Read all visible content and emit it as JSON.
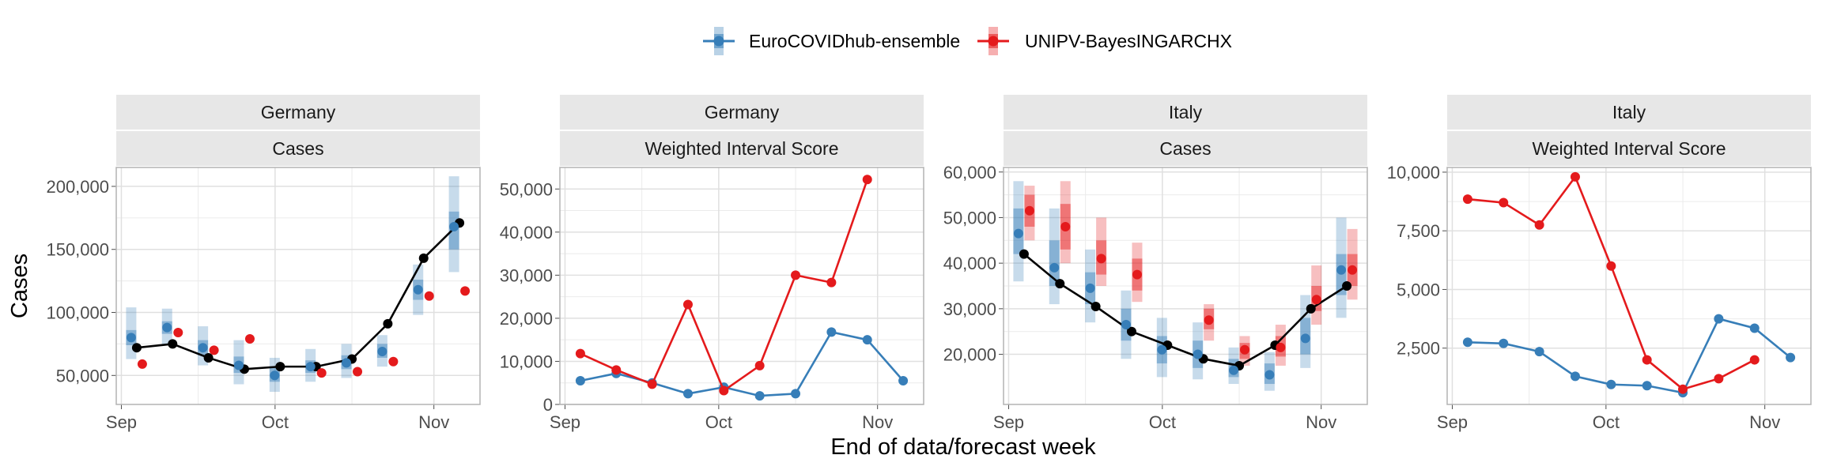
{
  "y_axis_label": "Cases",
  "x_axis_label": "End of data/forecast week",
  "x_tick_labels": [
    "Sep",
    "Oct",
    "Nov"
  ],
  "colors": {
    "EuroCOVIDhub-ensemble": "#377eb8",
    "UNIPV-BayesINGARCHX": "#e41a1c",
    "observed": "#000000"
  },
  "legend": [
    "EuroCOVIDhub-ensemble",
    "UNIPV-BayesINGARCHX"
  ],
  "chart_data": [
    {
      "type": "line",
      "facet": [
        "Germany",
        "Cases"
      ],
      "dates": [
        "2021-09-04",
        "2021-09-11",
        "2021-09-18",
        "2021-09-25",
        "2021-10-02",
        "2021-10-09",
        "2021-10-16",
        "2021-10-23",
        "2021-10-30",
        "2021-11-06"
      ],
      "xlim": [
        "2021-08-31",
        "2021-11-10"
      ],
      "ylim": [
        27000,
        215000
      ],
      "yticks": [
        50000,
        100000,
        150000,
        200000
      ],
      "ytick_labels": [
        "50,000",
        "100,000",
        "150,000",
        "200,000"
      ],
      "observed": [
        72000,
        75000,
        64000,
        55000,
        57000,
        57000,
        63000,
        91000,
        143000,
        171000
      ],
      "series": [
        {
          "name": "EuroCOVIDhub-ensemble",
          "median": [
            80000,
            88000,
            72000,
            58000,
            50000,
            57000,
            60000,
            69000,
            118000,
            168000
          ],
          "inner": [
            [
              74000,
              86000
            ],
            [
              83000,
              93000
            ],
            [
              66000,
              78000
            ],
            [
              52000,
              65000
            ],
            [
              45000,
              56000
            ],
            [
              52000,
              62000
            ],
            [
              55000,
              66000
            ],
            [
              64000,
              75000
            ],
            [
              110000,
              126000
            ],
            [
              150000,
              180000
            ]
          ],
          "outer": [
            [
              63000,
              104000
            ],
            [
              74000,
              103000
            ],
            [
              58000,
              89000
            ],
            [
              43000,
              78000
            ],
            [
              37000,
              64000
            ],
            [
              45000,
              71000
            ],
            [
              48000,
              75000
            ],
            [
              57000,
              82000
            ],
            [
              98000,
              138000
            ],
            [
              132000,
              208000
            ]
          ]
        },
        {
          "name": "UNIPV-BayesINGARCHX",
          "median": [
            59000,
            84000,
            70000,
            79000,
            null,
            52000,
            53000,
            61000,
            113000,
            117000
          ]
        }
      ]
    },
    {
      "type": "line",
      "facet": [
        "Germany",
        "Weighted Interval Score"
      ],
      "dates": [
        "2021-09-04",
        "2021-09-11",
        "2021-09-18",
        "2021-09-25",
        "2021-10-02",
        "2021-10-09",
        "2021-10-16",
        "2021-10-23",
        "2021-10-30",
        "2021-11-06"
      ],
      "xlim": [
        "2021-08-31",
        "2021-11-10"
      ],
      "ylim": [
        0,
        55000
      ],
      "yticks": [
        0,
        10000,
        20000,
        30000,
        40000,
        50000
      ],
      "ytick_labels": [
        "0",
        "10,000",
        "20,000",
        "30,000",
        "40,000",
        "50,000"
      ],
      "series": [
        {
          "name": "EuroCOVIDhub-ensemble",
          "values": [
            5500,
            7200,
            5000,
            2500,
            4000,
            2000,
            2500,
            16800,
            15000,
            5500
          ]
        },
        {
          "name": "UNIPV-BayesINGARCHX",
          "values": [
            11800,
            8000,
            4700,
            23200,
            3200,
            9000,
            30000,
            28300,
            52200,
            null
          ]
        }
      ]
    },
    {
      "type": "line",
      "facet": [
        "Italy",
        "Cases"
      ],
      "dates": [
        "2021-09-04",
        "2021-09-11",
        "2021-09-18",
        "2021-09-25",
        "2021-10-02",
        "2021-10-09",
        "2021-10-16",
        "2021-10-23",
        "2021-10-30",
        "2021-11-06"
      ],
      "xlim": [
        "2021-08-31",
        "2021-11-10"
      ],
      "ylim": [
        9000,
        61000
      ],
      "yticks": [
        20000,
        30000,
        40000,
        50000,
        60000
      ],
      "ytick_labels": [
        "20,000",
        "30,000",
        "40,000",
        "50,000",
        "60,000"
      ],
      "observed": [
        42000,
        35500,
        30500,
        25000,
        22000,
        19000,
        17500,
        22000,
        30000,
        35000
      ],
      "series": [
        {
          "name": "EuroCOVIDhub-ensemble",
          "median": [
            46500,
            39000,
            34500,
            26500,
            21000,
            20000,
            16500,
            15500,
            23500,
            38500
          ],
          "inner": [
            [
              42000,
              52000
            ],
            [
              35000,
              45000
            ],
            [
              31000,
              38000
            ],
            [
              23000,
              30000
            ],
            [
              18000,
              24000
            ],
            [
              17000,
              23000
            ],
            [
              15000,
              19000
            ],
            [
              13500,
              18000
            ],
            [
              20000,
              28000
            ],
            [
              33000,
              42000
            ]
          ],
          "outer": [
            [
              36000,
              58000
            ],
            [
              31000,
              52000
            ],
            [
              27000,
              43000
            ],
            [
              19000,
              34000
            ],
            [
              15000,
              28000
            ],
            [
              14500,
              27000
            ],
            [
              13500,
              21500
            ],
            [
              12000,
              20500
            ],
            [
              17000,
              33000
            ],
            [
              28000,
              50000
            ]
          ]
        },
        {
          "name": "UNIPV-BayesINGARCHX",
          "median": [
            51500,
            48000,
            41000,
            37500,
            null,
            27500,
            21000,
            21500,
            32000,
            38500
          ],
          "inner": [
            [
              48000,
              55000
            ],
            [
              43000,
              53000
            ],
            [
              37500,
              45000
            ],
            [
              34000,
              41000
            ],
            null,
            [
              25500,
              30000
            ],
            [
              19000,
              22500
            ],
            [
              19500,
              24000
            ],
            [
              29500,
              35000
            ],
            [
              35000,
              42000
            ]
          ],
          "outer": [
            [
              45000,
              57000
            ],
            [
              40000,
              58000
            ],
            [
              35000,
              50000
            ],
            [
              31500,
              44500
            ],
            null,
            [
              23000,
              31000
            ],
            [
              17500,
              24000
            ],
            [
              17500,
              26500
            ],
            [
              26500,
              39500
            ],
            [
              32000,
              47500
            ]
          ]
        }
      ]
    },
    {
      "type": "line",
      "facet": [
        "Italy",
        "Weighted Interval Score"
      ],
      "dates": [
        "2021-09-04",
        "2021-09-11",
        "2021-09-18",
        "2021-09-25",
        "2021-10-02",
        "2021-10-09",
        "2021-10-16",
        "2021-10-23",
        "2021-10-30",
        "2021-11-06"
      ],
      "xlim": [
        "2021-08-31",
        "2021-11-10"
      ],
      "ylim": [
        100,
        10200
      ],
      "yticks": [
        2500,
        5000,
        7500,
        10000
      ],
      "ytick_labels": [
        "2,500",
        "5,000",
        "7,500",
        "10,000"
      ],
      "series": [
        {
          "name": "EuroCOVIDhub-ensemble",
          "values": [
            2750,
            2700,
            2350,
            1300,
            950,
            900,
            600,
            3750,
            3350,
            2100
          ]
        },
        {
          "name": "UNIPV-BayesINGARCHX",
          "values": [
            8850,
            8700,
            7750,
            9800,
            6000,
            2000,
            750,
            1200,
            2000,
            null
          ]
        }
      ]
    }
  ]
}
